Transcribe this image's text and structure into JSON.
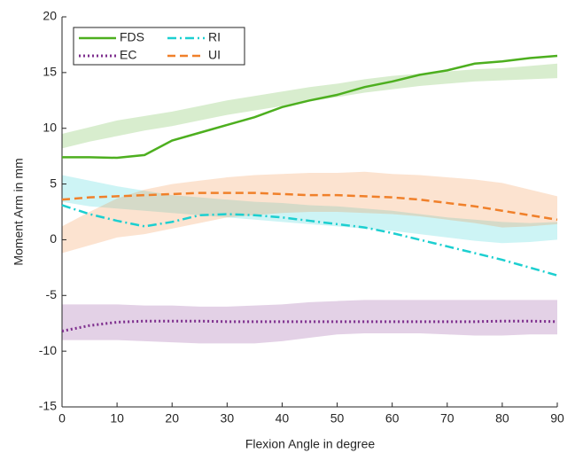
{
  "chart_data": {
    "type": "line",
    "xlabel": "Flexion Angle in degree",
    "ylabel": "Moment Arm in mm",
    "x": [
      0,
      5,
      10,
      15,
      20,
      25,
      30,
      35,
      40,
      45,
      50,
      55,
      60,
      65,
      70,
      75,
      80,
      85,
      90
    ],
    "xlim": [
      0,
      90
    ],
    "xticks": [
      0,
      10,
      20,
      30,
      40,
      50,
      60,
      70,
      80,
      90
    ],
    "ylim": [
      -15,
      20
    ],
    "yticks": [
      -15,
      -10,
      -5,
      0,
      5,
      10,
      15,
      20
    ],
    "grid": false,
    "legend": "upper-left",
    "band_opacity": 0.22,
    "series": [
      {
        "name": "FDS",
        "color": "#4daf1f",
        "linestyle": "solid",
        "values": [
          7.4,
          7.4,
          7.35,
          7.6,
          8.9,
          9.6,
          10.3,
          11.0,
          11.9,
          12.5,
          13.0,
          13.7,
          14.2,
          14.8,
          15.2,
          15.8,
          16.0,
          16.3,
          16.5
        ],
        "band": {
          "lower": [
            8.2,
            8.8,
            9.3,
            9.8,
            10.2,
            10.7,
            11.2,
            11.6,
            12.0,
            12.4,
            12.8,
            13.2,
            13.5,
            13.8,
            14.0,
            14.2,
            14.3,
            14.4,
            14.5
          ],
          "upper": [
            9.5,
            10.1,
            10.7,
            11.1,
            11.5,
            12.0,
            12.5,
            12.9,
            13.3,
            13.7,
            14.0,
            14.4,
            14.7,
            14.9,
            15.1,
            15.3,
            15.4,
            15.6,
            15.8
          ]
        }
      },
      {
        "name": "RI",
        "color": "#1ccfd0",
        "linestyle": "dashdot",
        "values": [
          3.1,
          2.3,
          1.7,
          1.2,
          1.6,
          2.2,
          2.3,
          2.2,
          2.0,
          1.7,
          1.4,
          1.1,
          0.6,
          0.0,
          -0.6,
          -1.2,
          -1.8,
          -2.5,
          -3.2
        ],
        "band": {
          "lower": [
            3.4,
            3.0,
            2.8,
            2.6,
            2.4,
            2.2,
            2.0,
            1.8,
            1.6,
            1.4,
            1.2,
            1.0,
            0.8,
            0.5,
            0.2,
            -0.1,
            -0.3,
            -0.2,
            0.0
          ],
          "upper": [
            5.8,
            5.3,
            4.8,
            4.4,
            4.0,
            3.8,
            3.6,
            3.4,
            3.3,
            3.1,
            3.0,
            2.8,
            2.6,
            2.3,
            2.0,
            1.8,
            1.6,
            1.5,
            1.6
          ]
        }
      },
      {
        "name": "EC",
        "color": "#7e2f8e",
        "linestyle": "dotted",
        "values": [
          -8.2,
          -7.7,
          -7.4,
          -7.3,
          -7.3,
          -7.3,
          -7.35,
          -7.35,
          -7.35,
          -7.35,
          -7.35,
          -7.35,
          -7.35,
          -7.35,
          -7.35,
          -7.35,
          -7.3,
          -7.3,
          -7.35
        ],
        "band": {
          "lower": [
            -9.0,
            -9.0,
            -9.0,
            -9.1,
            -9.2,
            -9.3,
            -9.3,
            -9.3,
            -9.1,
            -8.8,
            -8.5,
            -8.4,
            -8.4,
            -8.4,
            -8.5,
            -8.6,
            -8.6,
            -8.5,
            -8.5
          ],
          "upper": [
            -5.8,
            -5.8,
            -5.8,
            -5.9,
            -5.9,
            -6.0,
            -6.0,
            -5.9,
            -5.8,
            -5.6,
            -5.5,
            -5.4,
            -5.4,
            -5.4,
            -5.4,
            -5.4,
            -5.4,
            -5.4,
            -5.4
          ]
        }
      },
      {
        "name": "UI",
        "color": "#f0802a",
        "linestyle": "dashed",
        "values": [
          3.6,
          3.8,
          3.9,
          4.0,
          4.1,
          4.2,
          4.2,
          4.2,
          4.1,
          4.0,
          4.0,
          3.9,
          3.8,
          3.6,
          3.3,
          3.0,
          2.6,
          2.2,
          1.8
        ],
        "band": {
          "lower": [
            -1.2,
            -0.5,
            0.2,
            0.5,
            1.0,
            1.5,
            2.0,
            2.2,
            2.4,
            2.5,
            2.5,
            2.4,
            2.3,
            2.1,
            1.8,
            1.5,
            1.1,
            1.2,
            1.4
          ],
          "upper": [
            1.2,
            2.5,
            3.7,
            4.5,
            5.0,
            5.3,
            5.6,
            5.8,
            5.9,
            6.0,
            6.0,
            6.1,
            5.9,
            5.8,
            5.6,
            5.4,
            5.1,
            4.5,
            3.9
          ]
        }
      }
    ]
  }
}
